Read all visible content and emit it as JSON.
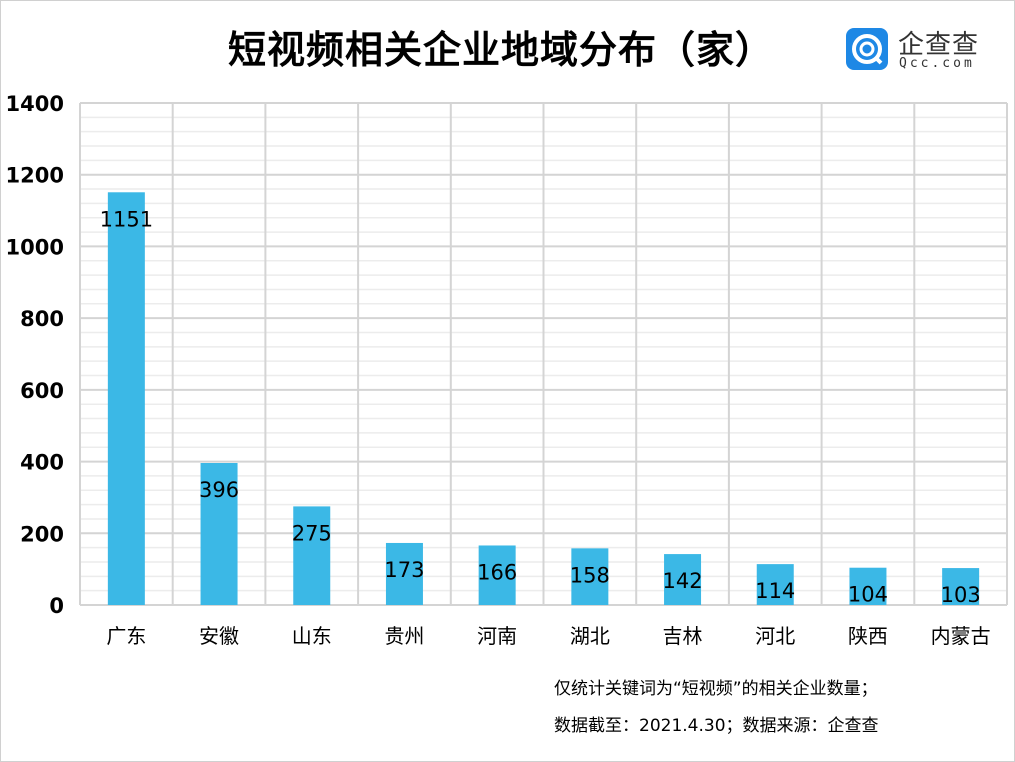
{
  "title": "短视频相关企业地域分布（家）",
  "logo": {
    "name": "企查查",
    "url": "Qcc.com"
  },
  "notes": [
    "仅统计关键词为“短视频”的相关企业数量；",
    "数据截至：2021.4.30；数据来源：企查查"
  ],
  "chart_data": {
    "type": "bar",
    "title": "短视频相关企业地域分布（家）",
    "categories": [
      "广东",
      "安徽",
      "山东",
      "贵州",
      "河南",
      "湖北",
      "吉林",
      "河北",
      "陕西",
      "内蒙古"
    ],
    "values": [
      1151,
      396,
      275,
      173,
      166,
      158,
      142,
      114,
      104,
      103
    ],
    "ylim": [
      0,
      1400
    ],
    "yticks": [
      0,
      200,
      400,
      600,
      800,
      1000,
      1200,
      1400
    ],
    "grid": true,
    "bar_color": "#3bb8e6",
    "data_labels": true
  }
}
